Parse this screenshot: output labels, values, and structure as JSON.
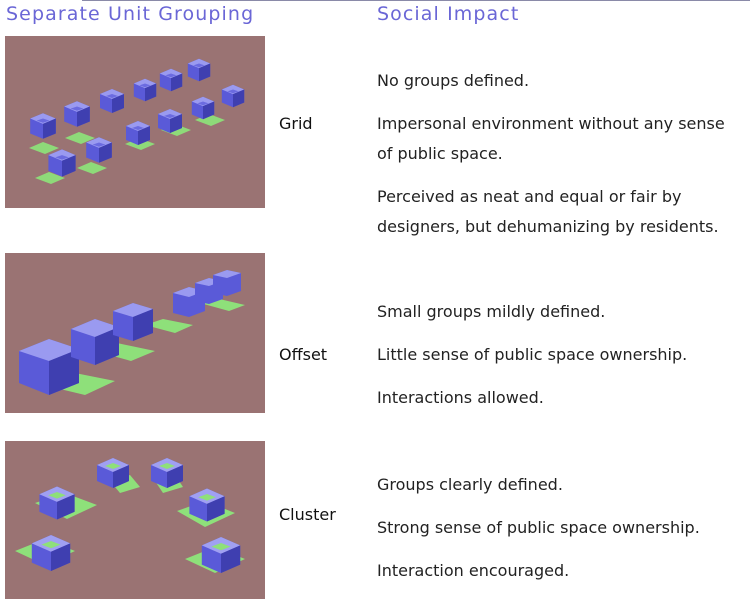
{
  "headers": {
    "left": "Separate Unit Grouping",
    "right": "Social Impact"
  },
  "rows": [
    {
      "label": "Grid",
      "image_alt": "grid arrangement of housing units",
      "lines": [
        "No groups defined.",
        "Impersonal environment without any sense",
        "of public space.",
        "Perceived as neat and equal or fair by",
        "designers, but dehumanizing by residents."
      ]
    },
    {
      "label": "Offset",
      "image_alt": "offset arrangement of housing units",
      "lines": [
        "Small groups mildly defined.",
        "Little sense of public space ownership.",
        "Interactions allowed."
      ]
    },
    {
      "label": "Cluster",
      "image_alt": "cluster arrangement of housing units",
      "lines": [
        "Groups clearly defined.",
        "Strong sense of public space ownership.",
        "Interaction encouraged."
      ]
    }
  ]
}
